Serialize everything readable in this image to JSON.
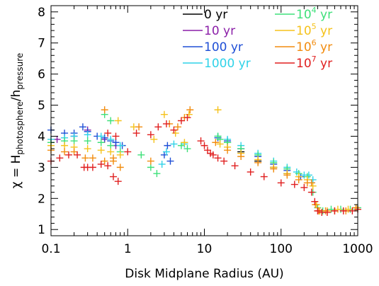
{
  "chart_data": {
    "type": "scatter",
    "xlabel": "Disk Midplane Radius (AU)",
    "ylabel": {
      "prefix": "χ = H",
      "sub1": "photosphere",
      "slash": "/h",
      "sub2": "pressure"
    },
    "x_scale": "log",
    "xlim": [
      0.1,
      1000
    ],
    "ylim": [
      0.8,
      8.2
    ],
    "x_ticks": [
      0.1,
      1,
      10,
      100,
      1000
    ],
    "x_tick_labels": [
      "0.1",
      "1",
      "10",
      "100",
      "1000"
    ],
    "y_ticks": [
      1,
      2,
      3,
      4,
      5,
      6,
      7,
      8
    ],
    "y_tick_labels": [
      "1",
      "2",
      "3",
      "4",
      "5",
      "6",
      "7",
      "8"
    ],
    "grid": false,
    "legend_placement": "top-right",
    "legend": [
      {
        "text": "0 yr",
        "color": "#000000"
      },
      {
        "text": "10 yr",
        "color": "#8b1fa8"
      },
      {
        "text": "100 yr",
        "color": "#1f4fd6"
      },
      {
        "text": "1000 yr",
        "color": "#2fd2e8"
      },
      {
        "base": "10",
        "exp": "4",
        "unit": "yr",
        "color": "#3ee07a"
      },
      {
        "base": "10",
        "exp": "5",
        "unit": "yr",
        "color": "#f5c21b"
      },
      {
        "base": "10",
        "exp": "6",
        "unit": "yr",
        "color": "#f28c0f"
      },
      {
        "base": "10",
        "exp": "7",
        "unit": "yr",
        "color": "#e01f1f"
      }
    ],
    "series": [
      {
        "color": "#000000",
        "x": [
          20,
          30,
          50,
          80,
          120
        ],
        "y": [
          3.8,
          3.5,
          3.2,
          3.0,
          2.8
        ]
      },
      {
        "color": "#8b1fa8",
        "x": [
          0.12,
          0.2,
          0.3,
          0.5,
          0.7
        ],
        "y": [
          3.9,
          4.0,
          4.2,
          3.9,
          3.7
        ]
      },
      {
        "color": "#1f4fd6",
        "x": [
          0.1,
          0.15,
          0.2,
          0.26,
          0.3,
          0.4,
          0.5,
          0.6,
          0.7,
          0.85,
          3.0,
          3.3,
          3.6,
          15,
          20,
          30,
          50,
          80,
          120,
          180,
          250
        ],
        "y": [
          4.2,
          4.1,
          4.1,
          4.3,
          4.15,
          4.0,
          3.95,
          3.85,
          3.8,
          3.7,
          3.4,
          3.7,
          3.2,
          3.95,
          3.85,
          3.6,
          3.35,
          3.1,
          2.9,
          2.7,
          2.5
        ]
      },
      {
        "color": "#2fd2e8",
        "x": [
          0.1,
          0.15,
          0.2,
          0.3,
          0.45,
          0.6,
          0.8,
          2.8,
          3.2,
          4.0,
          5.5,
          15,
          20,
          30,
          50,
          80,
          120,
          160,
          200,
          230,
          260
        ],
        "y": [
          3.9,
          3.95,
          4.0,
          4.05,
          4.0,
          3.9,
          3.7,
          3.1,
          3.5,
          3.75,
          3.75,
          4.0,
          3.9,
          3.7,
          3.45,
          3.2,
          3.0,
          2.85,
          2.75,
          2.75,
          2.6
        ]
      },
      {
        "color": "#3ee07a",
        "x": [
          0.1,
          0.15,
          0.2,
          0.3,
          0.45,
          0.6,
          0.8,
          0.5,
          0.6,
          1.5,
          2.0,
          2.4,
          5.0,
          6.0,
          15,
          16,
          20,
          30,
          50,
          80,
          120,
          170,
          220,
          260,
          300,
          350,
          450,
          600,
          800,
          1000
        ],
        "y": [
          3.8,
          3.85,
          3.85,
          3.85,
          3.8,
          3.7,
          3.5,
          4.7,
          4.5,
          3.4,
          3.0,
          2.8,
          3.7,
          3.6,
          4.0,
          3.9,
          3.8,
          3.6,
          3.4,
          3.15,
          2.95,
          2.8,
          2.7,
          2.2,
          1.7,
          1.6,
          1.65,
          1.65,
          1.65,
          1.7
        ]
      },
      {
        "color": "#f5c21b",
        "x": [
          0.1,
          0.15,
          0.2,
          0.3,
          0.45,
          0.6,
          0.8,
          0.75,
          1.2,
          2.2,
          3.0,
          4.2,
          5.5,
          6.3,
          15,
          16,
          20,
          30,
          50,
          80,
          120,
          170,
          220,
          260,
          290,
          320,
          400,
          550,
          750,
          950
        ],
        "y": [
          3.7,
          3.7,
          3.65,
          3.6,
          3.55,
          3.5,
          3.4,
          4.5,
          4.3,
          3.9,
          4.7,
          4.1,
          3.8,
          4.7,
          4.85,
          3.75,
          3.65,
          3.45,
          3.25,
          3.0,
          2.8,
          2.7,
          2.6,
          2.4,
          1.8,
          1.6,
          1.6,
          1.65,
          1.65,
          1.7
        ]
      },
      {
        "color": "#f28c0f",
        "x": [
          0.1,
          0.15,
          0.2,
          0.28,
          0.35,
          0.5,
          0.65,
          0.8,
          0.5,
          0.65,
          1.4,
          2.0,
          3.5,
          4.5,
          5.5,
          6.5,
          14,
          20,
          30,
          50,
          80,
          120,
          170,
          220,
          250,
          280,
          310,
          380,
          500,
          700,
          950
        ],
        "y": [
          3.55,
          3.5,
          3.5,
          3.3,
          3.3,
          3.2,
          3.2,
          3.0,
          4.85,
          3.3,
          4.3,
          3.2,
          4.4,
          4.3,
          4.6,
          4.85,
          3.8,
          3.55,
          3.35,
          3.15,
          2.95,
          2.75,
          2.6,
          2.5,
          2.5,
          1.8,
          1.6,
          1.6,
          1.6,
          1.6,
          1.7
        ]
      },
      {
        "color": "#e01f1f",
        "x": [
          0.1,
          0.13,
          0.17,
          0.22,
          0.27,
          0.3,
          0.35,
          0.45,
          0.55,
          0.65,
          0.75,
          0.55,
          0.7,
          1.0,
          1.3,
          2.0,
          2.5,
          3.2,
          4.0,
          5.0,
          6.0,
          9,
          10,
          11,
          12,
          13,
          15,
          18,
          25,
          40,
          60,
          100,
          150,
          200,
          250,
          275,
          300,
          340,
          400,
          500,
          650,
          850,
          1000
        ],
        "y": [
          3.2,
          3.3,
          3.4,
          3.4,
          3.0,
          3.0,
          3.0,
          3.1,
          3.05,
          2.7,
          2.55,
          4.1,
          4.0,
          3.5,
          4.1,
          4.05,
          4.3,
          4.4,
          4.2,
          4.5,
          4.6,
          3.85,
          3.7,
          3.55,
          3.45,
          3.4,
          3.3,
          3.2,
          3.05,
          2.85,
          2.7,
          2.5,
          2.45,
          2.35,
          2.2,
          1.9,
          1.6,
          1.55,
          1.55,
          1.6,
          1.6,
          1.6,
          1.65
        ]
      }
    ]
  }
}
